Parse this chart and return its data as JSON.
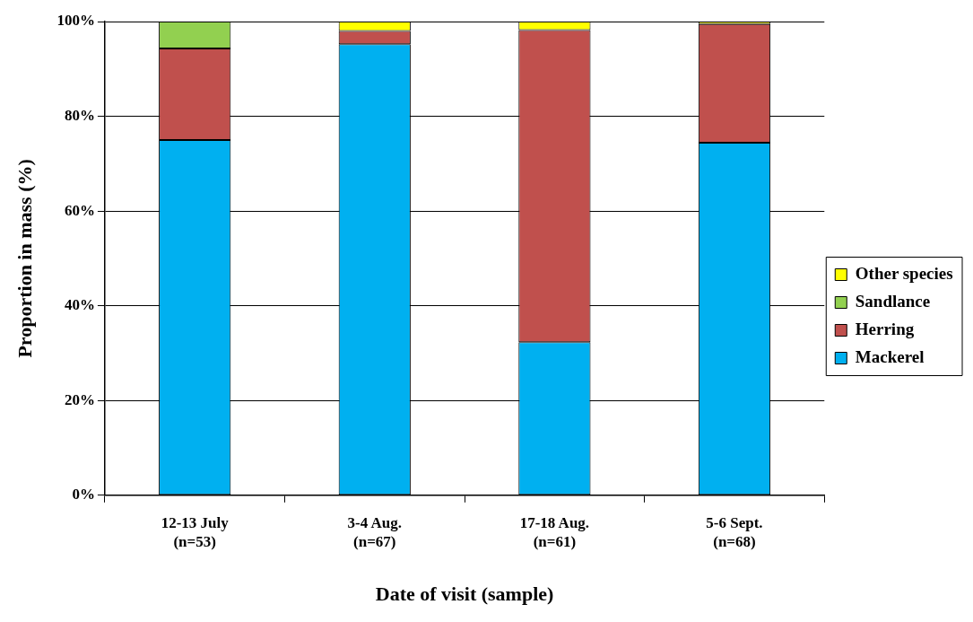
{
  "chart_data": {
    "type": "bar",
    "stacked": true,
    "categories": [
      "12-13 July\n(n=53)",
      "3-4 Aug.\n(n=67)",
      "17-18 Aug.\n(n=61)",
      "5-6 Sept.\n(n=68)"
    ],
    "series": [
      {
        "name": "Mackerel",
        "color": "#00b0f0",
        "values": [
          75.0,
          95.2,
          32.3,
          74.4
        ]
      },
      {
        "name": "Herring",
        "color": "#c0504d",
        "values": [
          19.3,
          2.8,
          65.9,
          25.1
        ]
      },
      {
        "name": "Sandlance",
        "color": "#92d050",
        "values": [
          5.7,
          null,
          null,
          null
        ]
      },
      {
        "name": "Other species",
        "color": "#ffff00",
        "values": [
          null,
          2.0,
          1.8,
          0.5
        ]
      }
    ],
    "ylim": [
      0,
      100
    ],
    "yticks": [
      {
        "value": 0,
        "label": "0%"
      },
      {
        "value": 20,
        "label": "20%"
      },
      {
        "value": 40,
        "label": "40%"
      },
      {
        "value": 60,
        "label": "60%"
      },
      {
        "value": 80,
        "label": "80%"
      },
      {
        "value": 100,
        "label": "100%"
      }
    ],
    "xlabel": "Date of visit (sample)",
    "ylabel": "Proportion in mass (%)",
    "grid": "y",
    "legend": "right"
  }
}
